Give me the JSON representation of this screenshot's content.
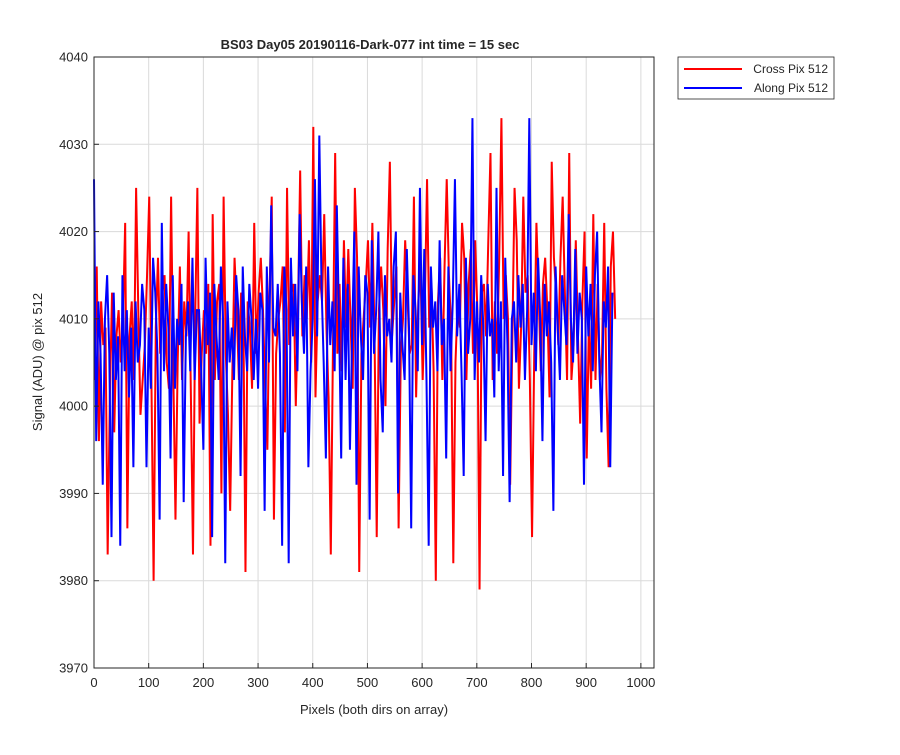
{
  "chart_data": {
    "type": "line",
    "title": "BS03 Day05 20190116-Dark-077 int time = 15 sec",
    "xlabel": "Pixels (both dirs on array)",
    "ylabel": "Signal (ADU) @ pix 512",
    "xlim": [
      0,
      1024
    ],
    "ylim": [
      3970,
      4040
    ],
    "xticks": [
      0,
      100,
      200,
      300,
      400,
      500,
      600,
      700,
      800,
      900,
      1000
    ],
    "yticks": [
      3970,
      3980,
      3990,
      4000,
      4010,
      4020,
      4030,
      4040
    ],
    "grid": true,
    "legend_position": "outside-top-right",
    "series": [
      {
        "name": "Cross Pix 512",
        "color": "#ff0000",
        "x_start": 1,
        "x_step": 4,
        "values": [
          4003,
          4016,
          3996,
          4012,
          4007,
          4009,
          3983,
          4001,
          4013,
          3997,
          4008,
          4011,
          4005,
          4010,
          4021,
          3986,
          4008,
          4012,
          4003,
          4025,
          4011,
          3999,
          4003,
          4007,
          4015,
          4024,
          4003,
          3980,
          4009,
          4017,
          4006,
          4013,
          4015,
          4005,
          4002,
          4024,
          4004,
          3987,
          4005,
          4016,
          4003,
          4012,
          4008,
          4020,
          4002,
          3983,
          4010,
          4025,
          3998,
          4006,
          4011,
          4006,
          4014,
          3984,
          4022,
          4003,
          4012,
          4014,
          3990,
          4024,
          4006,
          3999,
          3988,
          4004,
          4017,
          4011,
          4003,
          4013,
          4011,
          3981,
          4012,
          4009,
          4002,
          4021,
          4006,
          4013,
          4017,
          4011,
          4002,
          3995,
          4013,
          4024,
          3987,
          4006,
          4010,
          4012,
          4016,
          3997,
          4025,
          4007,
          4013,
          4014,
          4000,
          4011,
          4027,
          4008,
          4015,
          4010,
          4019,
          4005,
          4032,
          4001,
          4012,
          4015,
          4012,
          4022,
          4009,
          4001,
          3983,
          4007,
          4029,
          4006,
          4014,
          4004,
          4019,
          4009,
          4018,
          4010,
          4002,
          4025,
          4017,
          3981,
          4006,
          4010,
          4014,
          4019,
          4009,
          4021,
          4008,
          3985,
          4011,
          4016,
          4011,
          4000,
          4018,
          4028,
          4008,
          4012,
          4016,
          3986,
          4006,
          4010,
          4019,
          4013,
          4006,
          4007,
          4024,
          4001,
          4012,
          4016,
          4003,
          4012,
          4026,
          4009,
          4014,
          4004,
          3980,
          4012,
          4017,
          4003,
          4016,
          4026,
          4015,
          4009,
          3982,
          4005,
          4012,
          4009,
          4021,
          4017,
          4003,
          4014,
          4018,
          4006,
          4019,
          4011,
          3979,
          4013,
          4014,
          4008,
          4019,
          4029,
          4003,
          4012,
          4006,
          4017,
          4033,
          4010,
          4015,
          4010,
          3991,
          4008,
          4025,
          4019,
          4002,
          4009,
          4024,
          4013,
          4015,
          4003,
          3985,
          4006,
          4021,
          4013,
          4004,
          4014,
          4017,
          4011,
          4001,
          4028,
          4017,
          4013,
          4007,
          4017,
          4024,
          4013,
          4003,
          4029,
          4003,
          4007,
          4019,
          4008,
          3998,
          4012,
          4020,
          3994,
          4010,
          4002,
          4022,
          4003,
          4014,
          4003,
          4006,
          4021,
          4002,
          3993,
          4016,
          4020,
          4010
        ]
      },
      {
        "name": "Along Pix 512",
        "color": "#0000ff",
        "x_start": 0,
        "x_step": 4,
        "values": [
          4026,
          3996,
          4012,
          4006,
          3991,
          4010,
          4015,
          4006,
          3985,
          4013,
          4003,
          4008,
          3984,
          4015,
          4004,
          4011,
          4001,
          4009,
          3993,
          4012,
          4005,
          4007,
          4014,
          4011,
          3993,
          4009,
          4002,
          4017,
          4013,
          4006,
          3987,
          4021,
          4004,
          4014,
          4009,
          3994,
          4015,
          4002,
          4010,
          4007,
          4014,
          3989,
          4008,
          4012,
          4004,
          4017,
          4003,
          4011,
          4011,
          4004,
          3995,
          4017,
          4007,
          4013,
          3985,
          4014,
          4008,
          4003,
          4016,
          4010,
          3982,
          4012,
          4005,
          4009,
          4003,
          4015,
          4011,
          3992,
          4016,
          4008,
          4004,
          4014,
          4010,
          4003,
          4010,
          4002,
          4013,
          4011,
          3988,
          4016,
          4005,
          4023,
          4009,
          4008,
          4014,
          4006,
          3984,
          4016,
          4011,
          3982,
          4017,
          4008,
          4014,
          4004,
          4022,
          4012,
          4006,
          4016,
          3993,
          4004,
          4010,
          4026,
          4008,
          4031,
          4014,
          4005,
          3994,
          4016,
          4007,
          4012,
          4004,
          4023,
          4010,
          3994,
          4017,
          4003,
          4014,
          3995,
          4008,
          4020,
          3991,
          4016,
          4008,
          4003,
          4015,
          4013,
          3987,
          4019,
          4006,
          4011,
          4020,
          4003,
          3997,
          4015,
          4008,
          4010,
          4005,
          4016,
          4020,
          3990,
          4013,
          4007,
          4003,
          4018,
          4009,
          3986,
          4015,
          4011,
          4004,
          4025,
          4007,
          4018,
          4003,
          3984,
          4016,
          4009,
          4012,
          4004,
          4019,
          4007,
          4010,
          3994,
          4016,
          4004,
          4012,
          4026,
          4008,
          4014,
          4004,
          3992,
          4017,
          4006,
          4010,
          4033,
          4003,
          4012,
          4005,
          4015,
          4009,
          3996,
          4014,
          4008,
          4010,
          4001,
          4025,
          4004,
          4012,
          3992,
          4017,
          4007,
          3989,
          4010,
          4012,
          4005,
          4015,
          4009,
          4014,
          4003,
          4011,
          4033,
          4007,
          4013,
          4004,
          4017,
          4010,
          3996,
          4014,
          4008,
          4012,
          4005,
          3988,
          4016,
          4009,
          4003,
          4015,
          4011,
          4007,
          4022,
          4010,
          4005,
          4018,
          4006,
          4013,
          4010,
          3991,
          4016,
          4008,
          4014,
          4004,
          4015,
          4020,
          4005,
          3997,
          4012,
          4009,
          4016,
          3993,
          4013
        ]
      }
    ]
  }
}
